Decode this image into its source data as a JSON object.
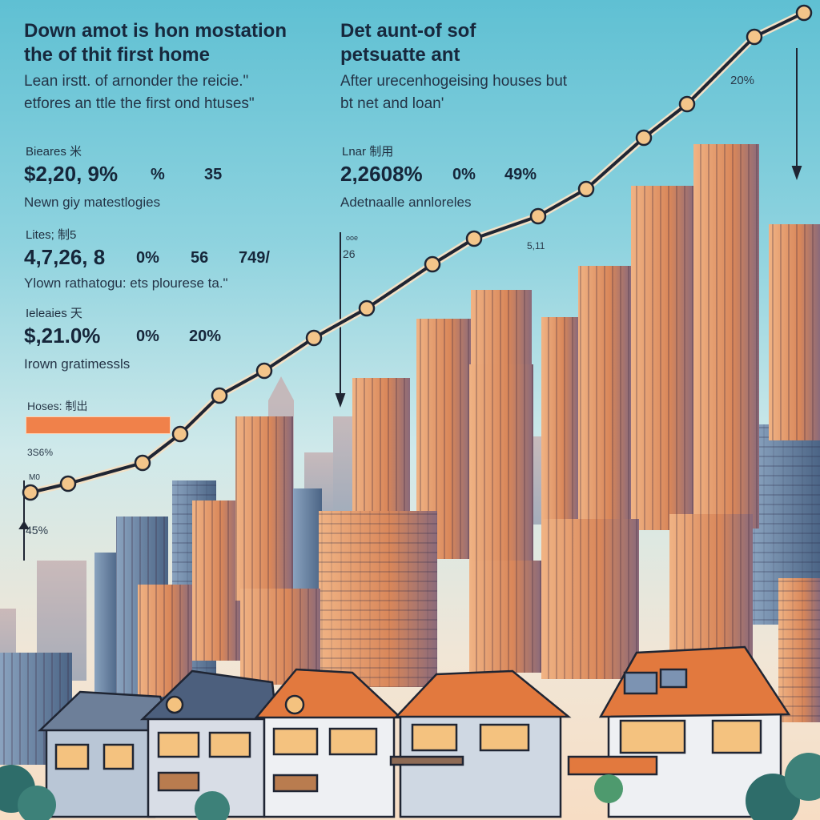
{
  "left_panel": {
    "title_line1": "Down amot is hon mostation",
    "title_line2": "the of thit first home",
    "subtitle_line1": "Lean irstt. of arnonder the reicie.\"",
    "subtitle_line2": "etfores an ttle the first ond htuses\"",
    "stat1": {
      "label": "Bieares 米",
      "values": [
        "$2,20, 9%",
        "%",
        "35"
      ],
      "desc": "Newn giy matestlogies"
    },
    "stat2": {
      "label": "Lites; 制5",
      "values": [
        "4,7,26, 8",
        "0%",
        "56",
        "749/"
      ],
      "desc": "Ylown rathatogu: ets plourese ta.\""
    },
    "stat3": {
      "label": "Ieleaies 天",
      "values": [
        "$,21.0%",
        "0%",
        "20%"
      ],
      "desc": "Irown gratimessls"
    },
    "houses": {
      "label": "Hoses: 制出",
      "bar_fraction": 0.22,
      "value": "3S6%"
    },
    "bottom_value": "45%"
  },
  "right_panel": {
    "title_line1": "Det aunt-of sof",
    "title_line2": "petsuatte ant",
    "subtitle_line1": "After urecenhogeising houses but",
    "subtitle_line2": "bt net and loan'",
    "stat": {
      "label": "Lnar 制用",
      "values": [
        "2,2608%",
        "0%",
        "49%"
      ],
      "desc": "Adetnaalle annloreles"
    },
    "peak_value": "20%"
  },
  "chart_annotations": {
    "marker_small_label": "ooe",
    "marker_value": "26",
    "mid_value": "5,11",
    "start_label": "M0"
  },
  "colors": {
    "sky_top": "#5fc0d3",
    "sky_bottom": "#f7ddc4",
    "line": "#1f2533",
    "point_fill": "#f3c58a",
    "bar": "#f0814a",
    "building_warm": "#e8a06a",
    "building_cool": "#5a7698",
    "roof": "#e2793e"
  }
}
